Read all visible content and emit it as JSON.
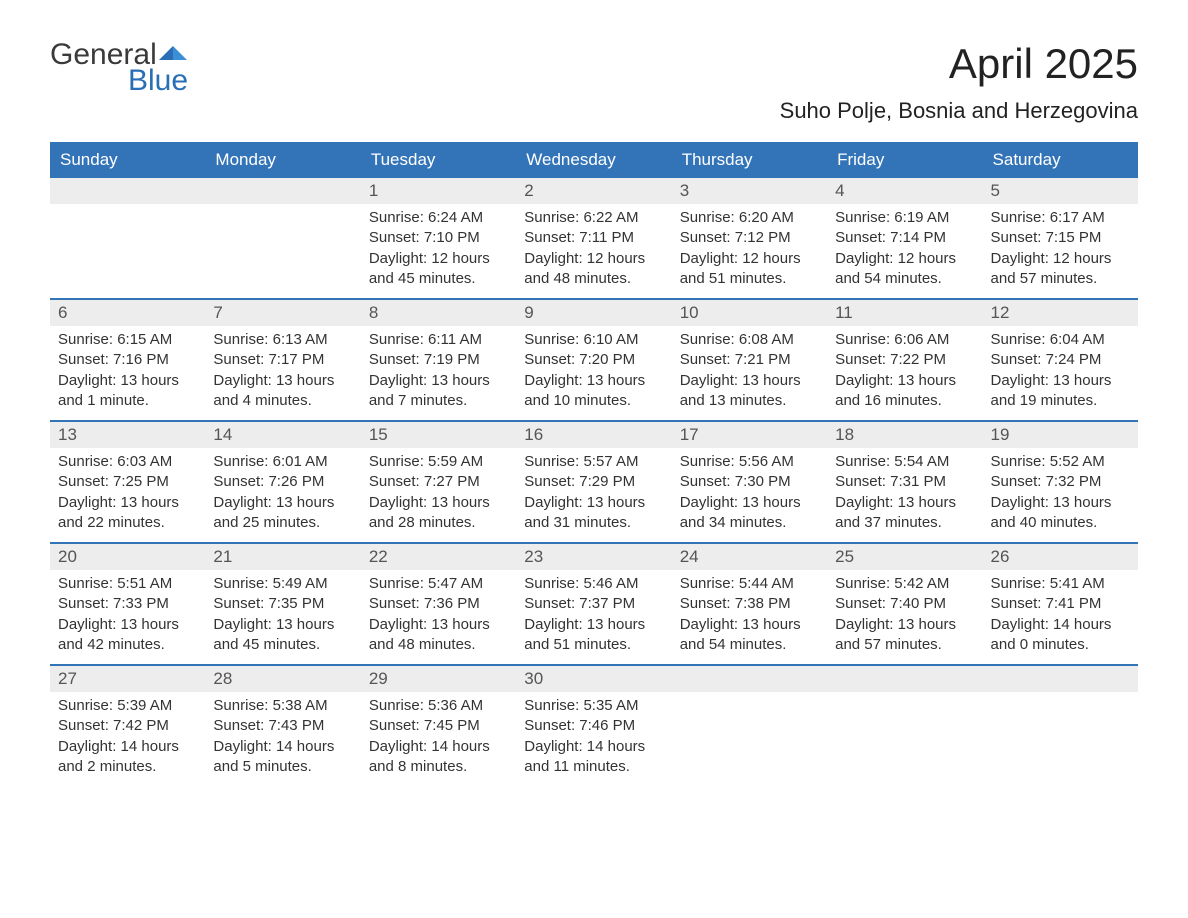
{
  "logo": {
    "text1": "General",
    "text2": "Blue"
  },
  "title": "April 2025",
  "location": "Suho Polje, Bosnia and Herzegovina",
  "colors": {
    "header_bg": "#3374b9",
    "header_fg": "#ffffff",
    "daynum_bg": "#ededed",
    "logo_blue": "#2a6fb5",
    "text": "#333333"
  },
  "weekdays": [
    "Sunday",
    "Monday",
    "Tuesday",
    "Wednesday",
    "Thursday",
    "Friday",
    "Saturday"
  ],
  "weeks": [
    [
      {
        "n": "",
        "sr": "",
        "ss": "",
        "dl": ""
      },
      {
        "n": "",
        "sr": "",
        "ss": "",
        "dl": ""
      },
      {
        "n": "1",
        "sr": "Sunrise: 6:24 AM",
        "ss": "Sunset: 7:10 PM",
        "dl": "Daylight: 12 hours and 45 minutes."
      },
      {
        "n": "2",
        "sr": "Sunrise: 6:22 AM",
        "ss": "Sunset: 7:11 PM",
        "dl": "Daylight: 12 hours and 48 minutes."
      },
      {
        "n": "3",
        "sr": "Sunrise: 6:20 AM",
        "ss": "Sunset: 7:12 PM",
        "dl": "Daylight: 12 hours and 51 minutes."
      },
      {
        "n": "4",
        "sr": "Sunrise: 6:19 AM",
        "ss": "Sunset: 7:14 PM",
        "dl": "Daylight: 12 hours and 54 minutes."
      },
      {
        "n": "5",
        "sr": "Sunrise: 6:17 AM",
        "ss": "Sunset: 7:15 PM",
        "dl": "Daylight: 12 hours and 57 minutes."
      }
    ],
    [
      {
        "n": "6",
        "sr": "Sunrise: 6:15 AM",
        "ss": "Sunset: 7:16 PM",
        "dl": "Daylight: 13 hours and 1 minute."
      },
      {
        "n": "7",
        "sr": "Sunrise: 6:13 AM",
        "ss": "Sunset: 7:17 PM",
        "dl": "Daylight: 13 hours and 4 minutes."
      },
      {
        "n": "8",
        "sr": "Sunrise: 6:11 AM",
        "ss": "Sunset: 7:19 PM",
        "dl": "Daylight: 13 hours and 7 minutes."
      },
      {
        "n": "9",
        "sr": "Sunrise: 6:10 AM",
        "ss": "Sunset: 7:20 PM",
        "dl": "Daylight: 13 hours and 10 minutes."
      },
      {
        "n": "10",
        "sr": "Sunrise: 6:08 AM",
        "ss": "Sunset: 7:21 PM",
        "dl": "Daylight: 13 hours and 13 minutes."
      },
      {
        "n": "11",
        "sr": "Sunrise: 6:06 AM",
        "ss": "Sunset: 7:22 PM",
        "dl": "Daylight: 13 hours and 16 minutes."
      },
      {
        "n": "12",
        "sr": "Sunrise: 6:04 AM",
        "ss": "Sunset: 7:24 PM",
        "dl": "Daylight: 13 hours and 19 minutes."
      }
    ],
    [
      {
        "n": "13",
        "sr": "Sunrise: 6:03 AM",
        "ss": "Sunset: 7:25 PM",
        "dl": "Daylight: 13 hours and 22 minutes."
      },
      {
        "n": "14",
        "sr": "Sunrise: 6:01 AM",
        "ss": "Sunset: 7:26 PM",
        "dl": "Daylight: 13 hours and 25 minutes."
      },
      {
        "n": "15",
        "sr": "Sunrise: 5:59 AM",
        "ss": "Sunset: 7:27 PM",
        "dl": "Daylight: 13 hours and 28 minutes."
      },
      {
        "n": "16",
        "sr": "Sunrise: 5:57 AM",
        "ss": "Sunset: 7:29 PM",
        "dl": "Daylight: 13 hours and 31 minutes."
      },
      {
        "n": "17",
        "sr": "Sunrise: 5:56 AM",
        "ss": "Sunset: 7:30 PM",
        "dl": "Daylight: 13 hours and 34 minutes."
      },
      {
        "n": "18",
        "sr": "Sunrise: 5:54 AM",
        "ss": "Sunset: 7:31 PM",
        "dl": "Daylight: 13 hours and 37 minutes."
      },
      {
        "n": "19",
        "sr": "Sunrise: 5:52 AM",
        "ss": "Sunset: 7:32 PM",
        "dl": "Daylight: 13 hours and 40 minutes."
      }
    ],
    [
      {
        "n": "20",
        "sr": "Sunrise: 5:51 AM",
        "ss": "Sunset: 7:33 PM",
        "dl": "Daylight: 13 hours and 42 minutes."
      },
      {
        "n": "21",
        "sr": "Sunrise: 5:49 AM",
        "ss": "Sunset: 7:35 PM",
        "dl": "Daylight: 13 hours and 45 minutes."
      },
      {
        "n": "22",
        "sr": "Sunrise: 5:47 AM",
        "ss": "Sunset: 7:36 PM",
        "dl": "Daylight: 13 hours and 48 minutes."
      },
      {
        "n": "23",
        "sr": "Sunrise: 5:46 AM",
        "ss": "Sunset: 7:37 PM",
        "dl": "Daylight: 13 hours and 51 minutes."
      },
      {
        "n": "24",
        "sr": "Sunrise: 5:44 AM",
        "ss": "Sunset: 7:38 PM",
        "dl": "Daylight: 13 hours and 54 minutes."
      },
      {
        "n": "25",
        "sr": "Sunrise: 5:42 AM",
        "ss": "Sunset: 7:40 PM",
        "dl": "Daylight: 13 hours and 57 minutes."
      },
      {
        "n": "26",
        "sr": "Sunrise: 5:41 AM",
        "ss": "Sunset: 7:41 PM",
        "dl": "Daylight: 14 hours and 0 minutes."
      }
    ],
    [
      {
        "n": "27",
        "sr": "Sunrise: 5:39 AM",
        "ss": "Sunset: 7:42 PM",
        "dl": "Daylight: 14 hours and 2 minutes."
      },
      {
        "n": "28",
        "sr": "Sunrise: 5:38 AM",
        "ss": "Sunset: 7:43 PM",
        "dl": "Daylight: 14 hours and 5 minutes."
      },
      {
        "n": "29",
        "sr": "Sunrise: 5:36 AM",
        "ss": "Sunset: 7:45 PM",
        "dl": "Daylight: 14 hours and 8 minutes."
      },
      {
        "n": "30",
        "sr": "Sunrise: 5:35 AM",
        "ss": "Sunset: 7:46 PM",
        "dl": "Daylight: 14 hours and 11 minutes."
      },
      {
        "n": "",
        "sr": "",
        "ss": "",
        "dl": ""
      },
      {
        "n": "",
        "sr": "",
        "ss": "",
        "dl": ""
      },
      {
        "n": "",
        "sr": "",
        "ss": "",
        "dl": ""
      }
    ]
  ]
}
